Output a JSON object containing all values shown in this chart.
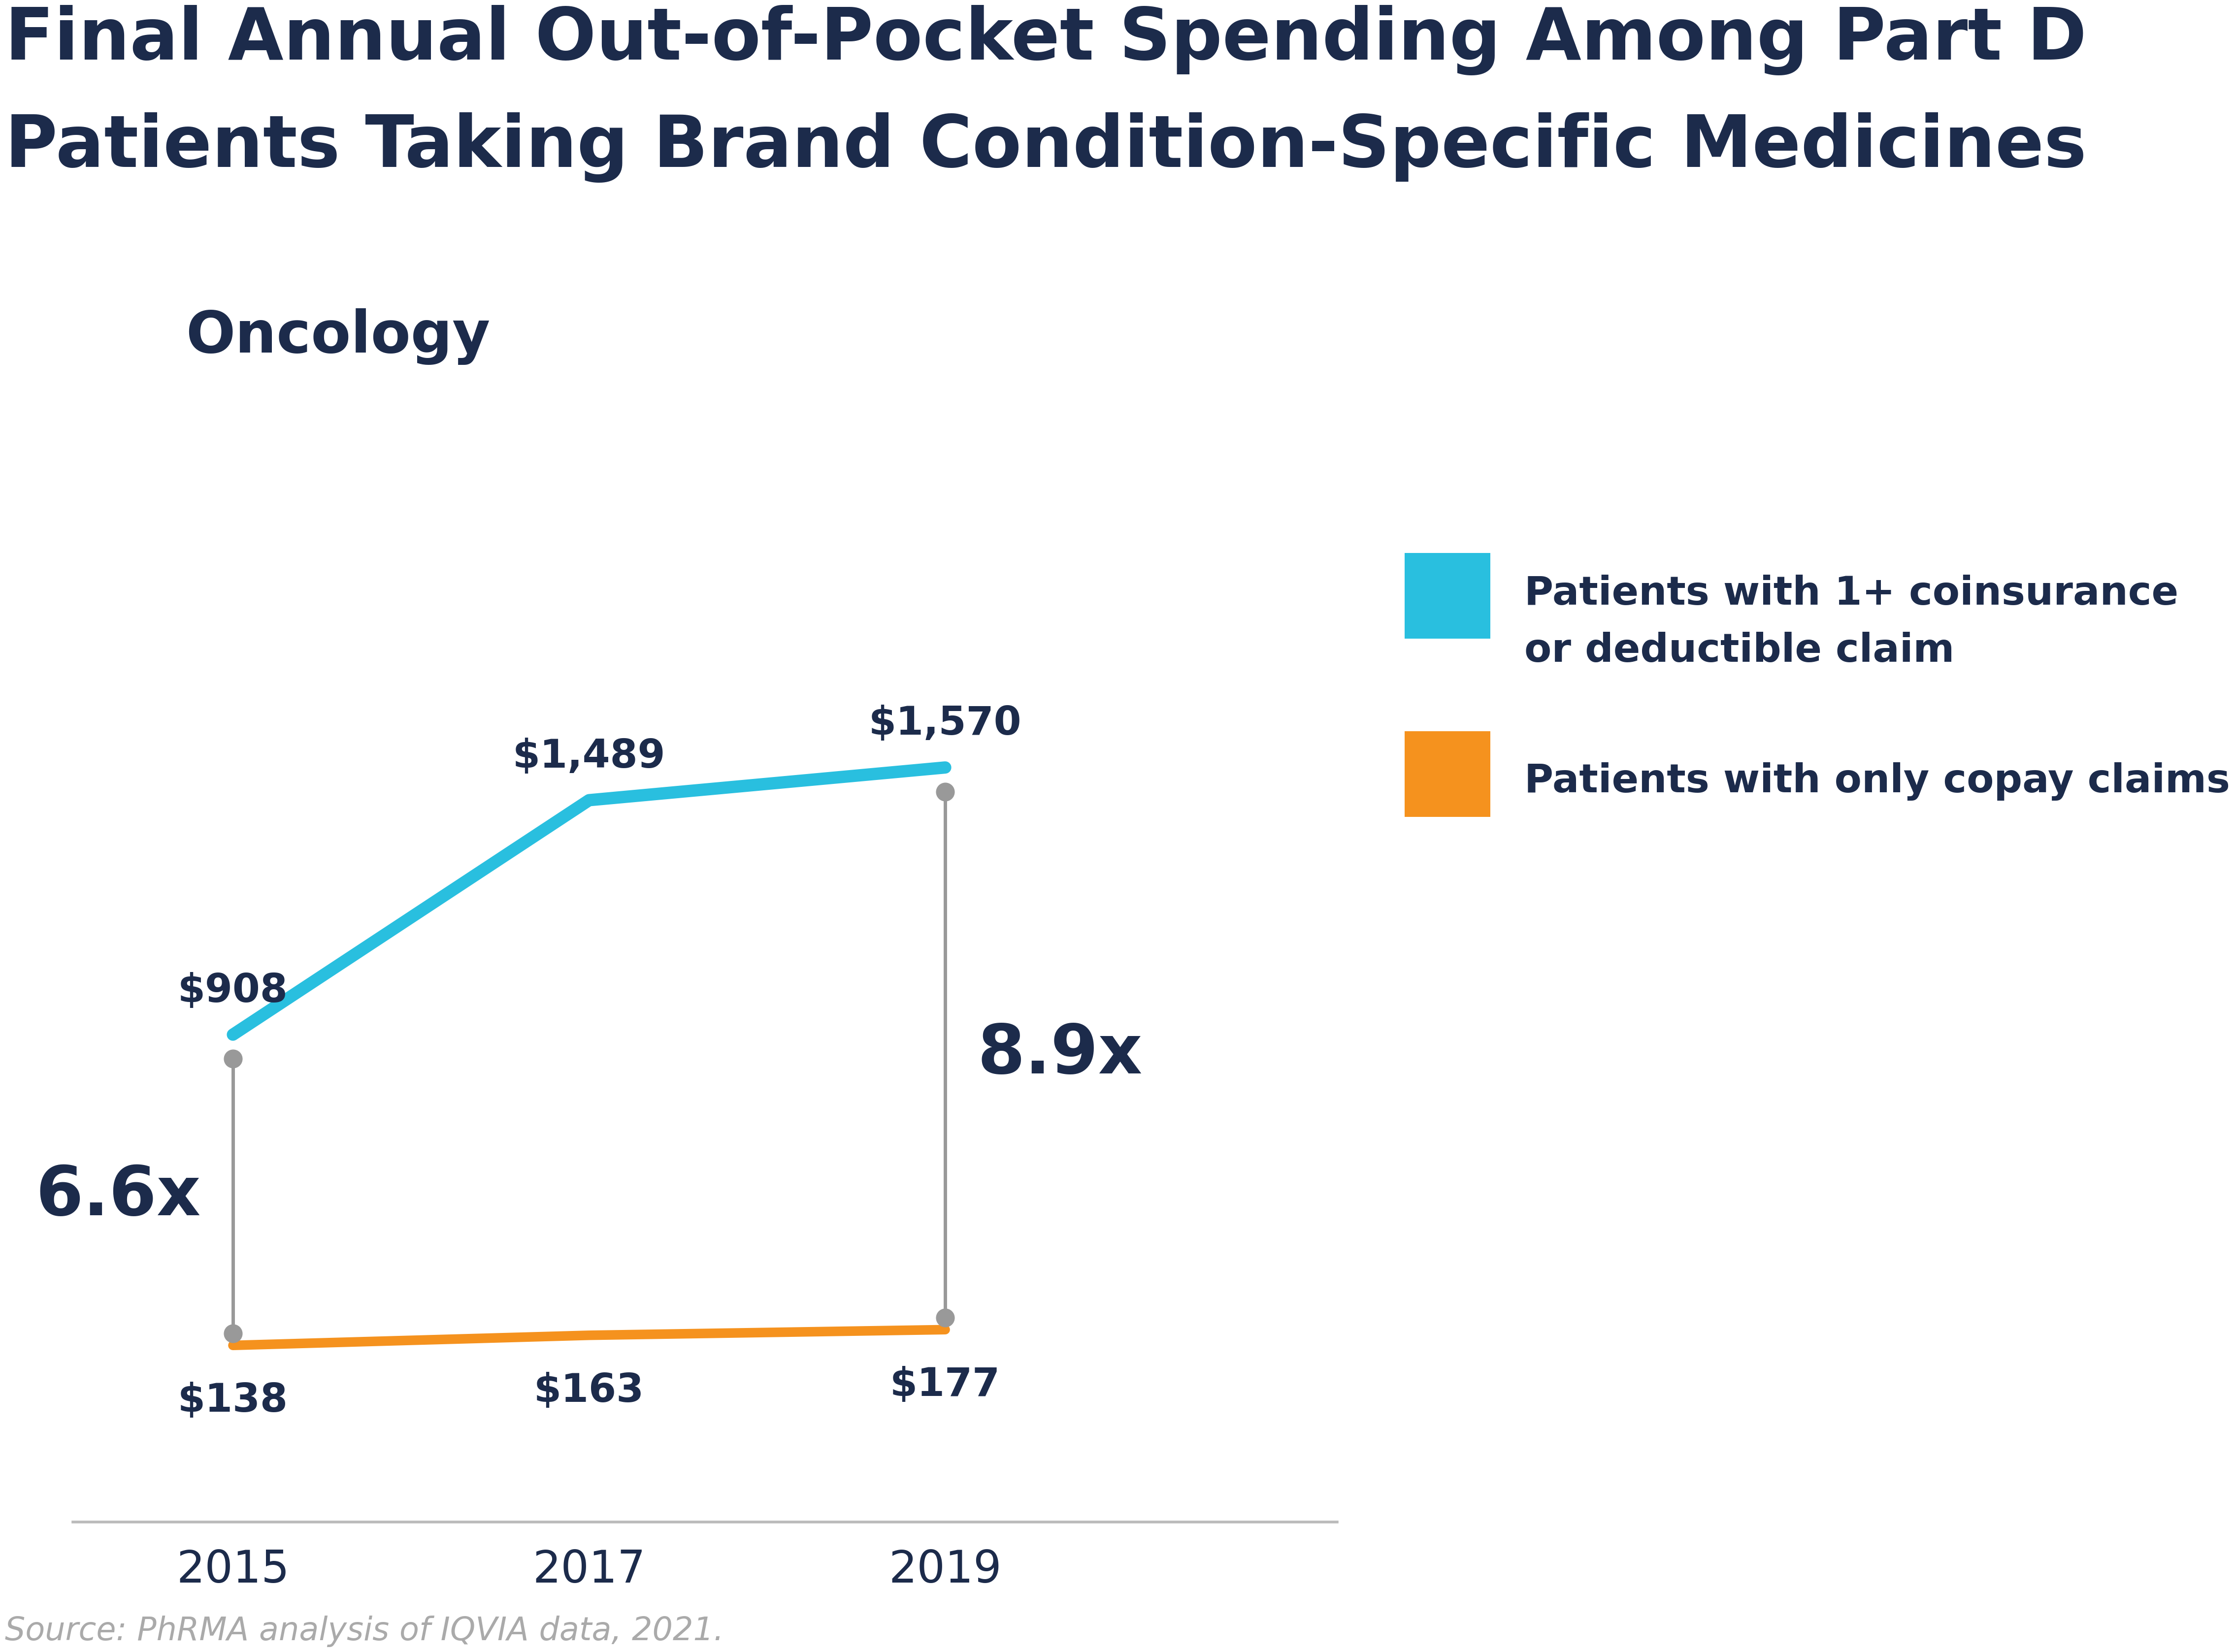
{
  "title_line1": "Final Annual Out-of-Pocket Spending Among Part D",
  "title_line2": "Patients Taking Brand Condition-Specific Medicines",
  "subtitle": "Oncology",
  "years": [
    2015,
    2017,
    2019
  ],
  "blue_values": [
    908,
    1489,
    1570
  ],
  "orange_values": [
    138,
    163,
    177
  ],
  "blue_labels": [
    "$908",
    "$1,489",
    "$1,570"
  ],
  "orange_labels": [
    "$138",
    "$163",
    "$177"
  ],
  "ratio_2015": "6.6x",
  "ratio_2019": "8.9x",
  "blue_color": "#29BFDF",
  "orange_color": "#F5921E",
  "title_color": "#1C2B4B",
  "connector_color": "#999999",
  "legend_label_blue_1": "Patients with 1+ coinsurance",
  "legend_label_blue_2": "or deductible claim",
  "legend_label_orange": "Patients with only copay claims",
  "source_text": "Source: PhRMA analysis of IQVIA data, 2021.",
  "background_color": "#FFFFFF",
  "xlim": [
    2014.1,
    2021.2
  ],
  "ylim": [
    -300,
    2000
  ]
}
